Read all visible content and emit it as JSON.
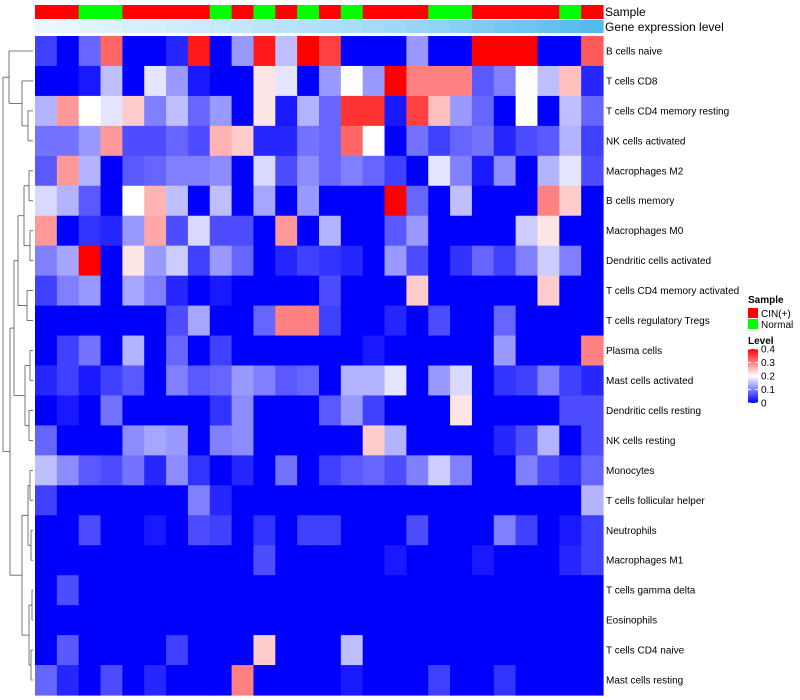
{
  "chart_data": {
    "type": "heatmap",
    "title": "",
    "annotation_labels": {
      "sample": "Sample",
      "gene_expression": "Gene expression level"
    },
    "sample_groups": [
      "CIN(+)",
      "CIN(+)",
      "Normal",
      "Normal",
      "CIN(+)",
      "CIN(+)",
      "CIN(+)",
      "CIN(+)",
      "Normal",
      "CIN(+)",
      "Normal",
      "CIN(+)",
      "Normal",
      "CIN(+)",
      "Normal",
      "CIN(+)",
      "CIN(+)",
      "CIN(+)",
      "Normal",
      "Normal",
      "CIN(+)",
      "CIN(+)",
      "CIN(+)",
      "CIN(+)",
      "Normal",
      "CIN(+)"
    ],
    "expression_annotation": [
      0.0,
      0.03,
      0.06,
      0.09,
      0.12,
      0.15,
      0.18,
      0.21,
      0.24,
      0.27,
      0.3,
      0.33,
      0.36,
      0.4,
      0.43,
      0.47,
      0.5,
      0.55,
      0.6,
      0.66,
      0.72,
      0.78,
      0.84,
      0.9,
      0.95,
      1.0
    ],
    "rows": [
      "B cells naive",
      "T cells CD8",
      "T cells CD4 memory resting",
      "NK cells activated",
      "Macrophages M2",
      "B cells memory",
      "Macrophages M0",
      "Dendritic cells activated",
      "T cells CD4 memory activated",
      "T cells regulatory  Tregs",
      "Plasma cells",
      "Mast cells activated",
      "Dendritic cells resting",
      "NK cells resting",
      "Monocytes",
      "T cells follicular helper",
      "Neutrophils",
      "Macrophages M1",
      "T cells gamma delta",
      "Eosinophils",
      "T cells CD4 naive",
      "Mast cells resting"
    ],
    "values": [
      [
        0.05,
        0.0,
        0.08,
        0.32,
        0.0,
        0.0,
        0.03,
        0.38,
        0.0,
        0.12,
        0.38,
        0.15,
        0.4,
        0.35,
        0.0,
        0.0,
        0.0,
        0.12,
        0.0,
        0.0,
        0.4,
        0.4,
        0.4,
        0.0,
        0.0,
        0.33
      ],
      [
        0.0,
        0.0,
        0.02,
        0.15,
        0.0,
        0.18,
        0.12,
        0.02,
        0.0,
        0.0,
        0.22,
        0.18,
        0.0,
        0.12,
        0.2,
        0.12,
        0.4,
        0.3,
        0.3,
        0.3,
        0.07,
        0.1,
        0.2,
        0.15,
        0.25,
        0.03
      ],
      [
        0.14,
        0.28,
        0.2,
        0.18,
        0.24,
        0.1,
        0.15,
        0.08,
        0.12,
        0.0,
        0.22,
        0.02,
        0.14,
        0.08,
        0.36,
        0.36,
        0.02,
        0.35,
        0.25,
        0.12,
        0.08,
        0.0,
        0.2,
        0.0,
        0.15,
        0.08
      ],
      [
        0.09,
        0.09,
        0.12,
        0.28,
        0.06,
        0.06,
        0.08,
        0.06,
        0.26,
        0.24,
        0.03,
        0.03,
        0.09,
        0.08,
        0.32,
        0.2,
        0.0,
        0.09,
        0.05,
        0.08,
        0.09,
        0.03,
        0.06,
        0.07,
        0.14,
        0.05
      ],
      [
        0.07,
        0.28,
        0.14,
        0.0,
        0.07,
        0.08,
        0.1,
        0.1,
        0.11,
        0.0,
        0.17,
        0.06,
        0.11,
        0.08,
        0.1,
        0.08,
        0.05,
        0.0,
        0.18,
        0.1,
        0.02,
        0.11,
        0.0,
        0.14,
        0.18,
        0.06
      ],
      [
        0.17,
        0.14,
        0.07,
        0.0,
        0.2,
        0.26,
        0.15,
        0.0,
        0.15,
        0.0,
        0.13,
        0.0,
        0.12,
        0.0,
        0.0,
        0.0,
        0.4,
        0.08,
        0.0,
        0.15,
        0.0,
        0.0,
        0.0,
        0.3,
        0.24,
        0.0
      ],
      [
        0.28,
        0.0,
        0.04,
        0.03,
        0.12,
        0.27,
        0.06,
        0.17,
        0.06,
        0.06,
        0.0,
        0.28,
        0.0,
        0.14,
        0.0,
        0.0,
        0.07,
        0.12,
        0.0,
        0.0,
        0.0,
        0.0,
        0.16,
        0.22,
        0.0,
        0.0
      ],
      [
        0.1,
        0.13,
        0.4,
        0.0,
        0.22,
        0.12,
        0.16,
        0.05,
        0.12,
        0.08,
        0.0,
        0.03,
        0.05,
        0.04,
        0.03,
        0.0,
        0.12,
        0.06,
        0.0,
        0.04,
        0.08,
        0.05,
        0.1,
        0.16,
        0.1,
        0.0
      ],
      [
        0.05,
        0.1,
        0.12,
        0.0,
        0.13,
        0.1,
        0.03,
        0.0,
        0.02,
        0.0,
        0.0,
        0.0,
        0.0,
        0.06,
        0.0,
        0.0,
        0.0,
        0.24,
        0.0,
        0.0,
        0.0,
        0.0,
        0.0,
        0.24,
        0.0,
        0.0
      ],
      [
        0.0,
        0.0,
        0.0,
        0.0,
        0.0,
        0.0,
        0.06,
        0.13,
        0.0,
        0.0,
        0.08,
        0.3,
        0.3,
        0.05,
        0.0,
        0.0,
        0.03,
        0.0,
        0.06,
        0.0,
        0.0,
        0.08,
        0.0,
        0.0,
        0.0,
        0.0
      ],
      [
        0.0,
        0.05,
        0.09,
        0.0,
        0.14,
        0.0,
        0.08,
        0.0,
        0.05,
        0.0,
        0.0,
        0.0,
        0.0,
        0.0,
        0.0,
        0.02,
        0.0,
        0.0,
        0.0,
        0.0,
        0.0,
        0.12,
        0.0,
        0.0,
        0.0,
        0.3
      ],
      [
        0.03,
        0.05,
        0.02,
        0.05,
        0.07,
        0.0,
        0.1,
        0.07,
        0.08,
        0.12,
        0.1,
        0.07,
        0.08,
        0.0,
        0.14,
        0.14,
        0.18,
        0.0,
        0.12,
        0.17,
        0.0,
        0.04,
        0.05,
        0.1,
        0.05,
        0.03
      ],
      [
        0.0,
        0.02,
        0.0,
        0.09,
        0.0,
        0.0,
        0.0,
        0.0,
        0.04,
        0.11,
        0.0,
        0.0,
        0.0,
        0.07,
        0.12,
        0.05,
        0.0,
        0.0,
        0.0,
        0.22,
        0.0,
        0.0,
        0.0,
        0.0,
        0.06,
        0.06
      ],
      [
        0.08,
        0.0,
        0.0,
        0.0,
        0.11,
        0.13,
        0.12,
        0.0,
        0.1,
        0.11,
        0.0,
        0.0,
        0.0,
        0.0,
        0.0,
        0.24,
        0.14,
        0.0,
        0.0,
        0.0,
        0.0,
        0.03,
        0.06,
        0.14,
        0.0,
        0.06
      ],
      [
        0.15,
        0.11,
        0.07,
        0.06,
        0.09,
        0.03,
        0.11,
        0.04,
        0.0,
        0.03,
        0.0,
        0.09,
        0.0,
        0.05,
        0.07,
        0.08,
        0.06,
        0.1,
        0.16,
        0.1,
        0.0,
        0.0,
        0.1,
        0.06,
        0.04,
        0.08
      ],
      [
        0.05,
        0.0,
        0.0,
        0.0,
        0.0,
        0.0,
        0.0,
        0.1,
        0.03,
        0.0,
        0.0,
        0.0,
        0.0,
        0.0,
        0.0,
        0.0,
        0.0,
        0.0,
        0.0,
        0.0,
        0.0,
        0.0,
        0.0,
        0.0,
        0.0,
        0.14
      ],
      [
        0.0,
        0.0,
        0.06,
        0.0,
        0.0,
        0.02,
        0.0,
        0.06,
        0.05,
        0.0,
        0.04,
        0.0,
        0.05,
        0.05,
        0.0,
        0.0,
        0.0,
        0.06,
        0.0,
        0.0,
        0.0,
        0.1,
        0.05,
        0.0,
        0.02,
        0.05
      ],
      [
        0.0,
        0.0,
        0.0,
        0.0,
        0.0,
        0.0,
        0.0,
        0.0,
        0.0,
        0.0,
        0.06,
        0.0,
        0.0,
        0.0,
        0.0,
        0.0,
        0.02,
        0.0,
        0.0,
        0.0,
        0.02,
        0.0,
        0.0,
        0.0,
        0.03,
        0.05
      ],
      [
        0.0,
        0.06,
        0.0,
        0.0,
        0.0,
        0.0,
        0.0,
        0.0,
        0.0,
        0.0,
        0.0,
        0.0,
        0.0,
        0.0,
        0.0,
        0.0,
        0.0,
        0.0,
        0.0,
        0.0,
        0.0,
        0.0,
        0.0,
        0.0,
        0.0,
        0.0
      ],
      [
        0.0,
        0.0,
        0.0,
        0.0,
        0.0,
        0.0,
        0.0,
        0.0,
        0.0,
        0.0,
        0.0,
        0.0,
        0.0,
        0.0,
        0.0,
        0.0,
        0.0,
        0.0,
        0.0,
        0.0,
        0.0,
        0.0,
        0.0,
        0.0,
        0.0,
        0.0
      ],
      [
        0.0,
        0.07,
        0.0,
        0.0,
        0.0,
        0.0,
        0.05,
        0.0,
        0.0,
        0.0,
        0.24,
        0.0,
        0.0,
        0.0,
        0.15,
        0.0,
        0.0,
        0.0,
        0.0,
        0.0,
        0.0,
        0.0,
        0.0,
        0.0,
        0.0,
        0.0
      ],
      [
        0.08,
        0.03,
        0.0,
        0.06,
        0.0,
        0.03,
        0.0,
        0.0,
        0.0,
        0.3,
        0.0,
        0.0,
        0.0,
        0.0,
        0.02,
        0.0,
        0.0,
        0.0,
        0.05,
        0.0,
        0.0,
        0.04,
        0.0,
        0.0,
        0.0,
        0.0
      ]
    ],
    "color_scale": {
      "min": 0,
      "max": 0.4,
      "low": "#0000ff",
      "mid": "#ffffff",
      "high": "#ff0000"
    },
    "legend": {
      "sample_title": "Sample",
      "sample_items": [
        {
          "label": "CIN(+)",
          "color": "#ff0000"
        },
        {
          "label": "Normal",
          "color": "#00ff00"
        }
      ],
      "level_title": "Level",
      "level_ticks": [
        "0.4",
        "0.3",
        "0.2",
        "0.1",
        "0"
      ],
      "level_tick_values": [
        0.4,
        0.3,
        0.2,
        0.1,
        0
      ]
    },
    "annotation_colors": {
      "expression_low": "#eaf7ff",
      "expression_high": "#55bbee"
    }
  }
}
